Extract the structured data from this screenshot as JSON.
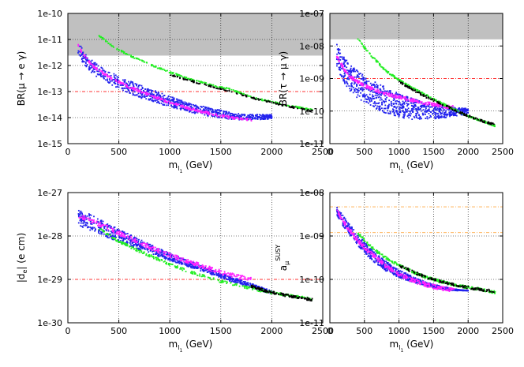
{
  "colors": {
    "excluded": "#c0c0c0",
    "bound": "#ff3333",
    "band": "#ffaa44",
    "grid": "#000000",
    "series_blue": "#2222ee",
    "series_magenta": "#ff22ff",
    "series_green": "#22ee22",
    "series_black": "#000000"
  },
  "chart_data": [
    {
      "id": "mu-e-gamma",
      "type": "scatter",
      "title": "",
      "xlabel": {
        "main": "m",
        "sub": "l",
        "subsub": "1",
        "unit": " (GeV)"
      },
      "ylabel": {
        "text": "BR(μ → e γ)"
      },
      "xlim": [
        0,
        2500
      ],
      "ylim_log10": [
        -15,
        -10
      ],
      "xticks": [
        "0",
        "500",
        "1000",
        "1500",
        "2000",
        "2500"
      ],
      "yticks": [
        "1e-15",
        "1e-14",
        "1e-13",
        "1e-12",
        "1e-11",
        "1e-10"
      ],
      "excluded_above": 2.4e-12,
      "bound_lines": [
        1e-13
      ],
      "series": [
        {
          "name": "blue",
          "x": [
            100,
            150,
            250,
            400,
            600,
            800,
            1000,
            1200,
            1400,
            1600,
            1800,
            2000
          ],
          "upper": [
            8e-12,
            4e-12,
            1.4e-12,
            6e-13,
            2.6e-13,
            1.3e-13,
            6.5e-14,
            3.6e-14,
            2.3e-14,
            1.6e-14,
            1.3e-14,
            1.3e-14
          ],
          "lower": [
            2.5e-12,
            1.2e-12,
            4.5e-13,
            2e-13,
            8e-14,
            4.4e-14,
            2.6e-14,
            1.6e-14,
            1.1e-14,
            8.5e-15,
            8e-15,
            9e-15
          ]
        },
        {
          "name": "magenta",
          "x": [
            100,
            150,
            250,
            400,
            600,
            800,
            1000,
            1200,
            1400,
            1600,
            1800
          ],
          "y": [
            6e-12,
            2.7e-12,
            9e-13,
            3.7e-13,
            1.5e-13,
            7.5e-14,
            3.8e-14,
            2.2e-14,
            1.4e-14,
            1e-14,
            8e-15
          ]
        },
        {
          "name": "green",
          "x": [
            300,
            400,
            500,
            600,
            800,
            1000,
            1200,
            1400,
            1600,
            1800,
            2000,
            2200,
            2400
          ],
          "y": [
            1.5e-11,
            7e-12,
            4e-12,
            2.5e-12,
            1.1e-12,
            5.5e-13,
            3e-13,
            1.8e-13,
            1.2e-13,
            6e-14,
            4e-14,
            2.7e-14,
            2e-14
          ]
        },
        {
          "name": "black",
          "x": [
            1000,
            1200,
            1400,
            1600,
            1800,
            2000,
            2200,
            2400
          ],
          "y": [
            4.5e-13,
            2.6e-13,
            1.6e-13,
            1e-13,
            5.8e-14,
            3.8e-14,
            2.5e-14,
            1.8e-14
          ]
        }
      ]
    },
    {
      "id": "tau-mu-gamma",
      "type": "scatter",
      "title": "",
      "xlabel": {
        "main": "m",
        "sub": "l",
        "subsub": "1",
        "unit": " (GeV)"
      },
      "ylabel": {
        "text": "BR(τ → μ γ)"
      },
      "xlim": [
        0,
        2500
      ],
      "ylim_log10": [
        -11,
        -7
      ],
      "xticks": [
        "0",
        "500",
        "1000",
        "1500",
        "2000",
        "2500"
      ],
      "yticks": [
        "1e-11",
        "1e-10",
        "1e-09",
        "1e-08",
        "1e-07"
      ],
      "excluded_above": 1.6e-08,
      "bound_lines": [
        1e-09
      ],
      "series": [
        {
          "name": "blue",
          "x": [
            100,
            150,
            250,
            400,
            600,
            800,
            1000,
            1200,
            1400,
            1600,
            1800,
            2000
          ],
          "upper": [
            1.5e-08,
            8e-09,
            3.5e-09,
            1.7e-09,
            9e-10,
            5.5e-10,
            3.5e-10,
            2.4e-10,
            1.8e-10,
            1.5e-10,
            1.3e-10,
            1.2e-10
          ],
          "lower": [
            2e-09,
            1.2e-09,
            5e-10,
            2.5e-10,
            1.3e-10,
            8.5e-11,
            6.5e-11,
            5.5e-11,
            5.5e-11,
            6e-11,
            7e-11,
            8e-11
          ]
        },
        {
          "name": "magenta",
          "x": [
            100,
            200,
            300,
            500,
            700,
            900,
            1100,
            1300,
            1500,
            1700,
            1800
          ],
          "y": [
            5e-09,
            2e-09,
            1.1e-09,
            6e-10,
            4e-10,
            3e-10,
            2.4e-10,
            1.9e-10,
            1.6e-10,
            1.35e-10,
            1.3e-10
          ]
        },
        {
          "name": "green",
          "x": [
            400,
            500,
            600,
            800,
            1000,
            1200,
            1400,
            1600,
            1800,
            2000,
            2200,
            2400
          ],
          "y": [
            1.8e-08,
            9e-09,
            5e-09,
            1.8e-09,
            9e-10,
            5e-10,
            3e-10,
            1.8e-10,
            1.1e-10,
            7e-11,
            5e-11,
            3.5e-11
          ]
        },
        {
          "name": "black",
          "x": [
            1000,
            1200,
            1400,
            1600,
            1800,
            2000,
            2200,
            2400
          ],
          "y": [
            8e-10,
            4.5e-10,
            2.7e-10,
            1.7e-10,
            1.1e-10,
            7e-11,
            5e-11,
            3.8e-11
          ]
        }
      ]
    },
    {
      "id": "edm",
      "type": "scatter",
      "title": "",
      "xlabel": {
        "main": "m",
        "sub": "l",
        "subsub": "1",
        "unit": " (GeV)"
      },
      "ylabel": {
        "text": "|d",
        "sub": "e",
        "after": "| (e cm)"
      },
      "xlim": [
        0,
        2500
      ],
      "ylim_log10": [
        -30,
        -27
      ],
      "xticks": [
        "0",
        "500",
        "1000",
        "1500",
        "2000",
        "2500"
      ],
      "yticks": [
        "1e-30",
        "1e-29",
        "1e-28",
        "1e-27"
      ],
      "excluded_above": null,
      "bound_lines": [
        1e-29
      ],
      "series": [
        {
          "name": "blue",
          "x": [
            100,
            200,
            400,
            600,
            800,
            1000,
            1200,
            1400,
            1600,
            1800,
            2000
          ],
          "upper": [
            4e-28,
            3.3e-28,
            1.9e-28,
            1.1e-28,
            6.5e-29,
            4e-29,
            2.6e-29,
            1.7e-29,
            1.15e-29,
            8e-30,
            5.5e-30
          ],
          "lower": [
            1.6e-28,
            1.4e-28,
            9e-29,
            6e-29,
            4e-29,
            2.7e-29,
            1.9e-29,
            1.3e-29,
            9e-30,
            6.5e-30,
            4.5e-30
          ]
        },
        {
          "name": "magenta",
          "x": [
            100,
            200,
            400,
            600,
            800,
            1000,
            1200,
            1400,
            1600,
            1800
          ],
          "y": [
            3e-28,
            2.4e-28,
            1.5e-28,
            9e-29,
            5.6e-29,
            3.6e-29,
            2.5e-29,
            1.75e-29,
            1.25e-29,
            1e-29
          ]
        },
        {
          "name": "green",
          "x": [
            300,
            500,
            700,
            900,
            1100,
            1300,
            1500,
            1700,
            1900,
            2100,
            2300,
            2400
          ],
          "y": [
            1.5e-28,
            7.5e-29,
            4.5e-29,
            2.8e-29,
            1.8e-29,
            1.25e-29,
            9e-30,
            7e-30,
            5.5e-30,
            4.5e-30,
            3.8e-30,
            3.5e-30
          ]
        },
        {
          "name": "black",
          "x": [
            1800,
            1900,
            2000,
            2100,
            2200,
            2300,
            2400
          ],
          "y": [
            7e-30,
            5.8e-30,
            5e-30,
            4.5e-30,
            4e-30,
            3.7e-30,
            3.4e-30
          ]
        }
      ]
    },
    {
      "id": "g-2",
      "type": "scatter",
      "title": "",
      "xlabel": {
        "main": "m",
        "sub": "l",
        "subsub": "1",
        "unit": " (GeV)"
      },
      "ylabel": {
        "text": "a",
        "sub": "μ",
        "sup": "SUSY"
      },
      "xlim": [
        0,
        2500
      ],
      "ylim_log10": [
        -11,
        -8
      ],
      "xticks": [
        "0",
        "500",
        "1000",
        "1500",
        "2000",
        "2500"
      ],
      "yticks": [
        "1e-11",
        "1e-10",
        "1e-09",
        "1e-08"
      ],
      "excluded_above": null,
      "band_lines": [
        4.7e-09,
        1.2e-09
      ],
      "series": [
        {
          "name": "blue",
          "x": [
            100,
            200,
            400,
            600,
            800,
            1000,
            1200,
            1400,
            1600,
            1800,
            2000
          ],
          "upper": [
            4.8e-09,
            2.8e-09,
            1.1e-09,
            5e-10,
            2.7e-10,
            1.7e-10,
            1.15e-10,
            8.5e-11,
            7e-11,
            6e-11,
            5.5e-11
          ],
          "lower": [
            3e-09,
            1.6e-09,
            6e-10,
            2.8e-10,
            1.6e-10,
            1.1e-10,
            8.5e-11,
            7e-11,
            6e-11,
            5.5e-11,
            5.5e-11
          ]
        },
        {
          "name": "magenta",
          "x": [
            100,
            200,
            400,
            600,
            800,
            1000,
            1200,
            1400,
            1600,
            1800
          ],
          "y": [
            3.8e-09,
            2.1e-09,
            8e-10,
            3.8e-10,
            2.1e-10,
            1.35e-10,
            9.5e-11,
            7.5e-11,
            6.3e-11,
            5.7e-11
          ]
        },
        {
          "name": "green",
          "x": [
            400,
            500,
            600,
            800,
            1000,
            1200,
            1400,
            1600,
            1800,
            2000,
            2200,
            2400
          ],
          "y": [
            1.2e-09,
            8e-10,
            5.5e-10,
            3.2e-10,
            2.1e-10,
            1.5e-10,
            1.1e-10,
            9e-11,
            7.5e-11,
            6.5e-11,
            5.8e-11,
            5e-11
          ]
        },
        {
          "name": "black",
          "x": [
            1000,
            1200,
            1400,
            1600,
            1800,
            2000,
            2200,
            2400
          ],
          "y": [
            2.1e-10,
            1.5e-10,
            1.1e-10,
            9e-11,
            7.5e-11,
            6.5e-11,
            5.8e-11,
            5.2e-11
          ]
        }
      ]
    }
  ]
}
